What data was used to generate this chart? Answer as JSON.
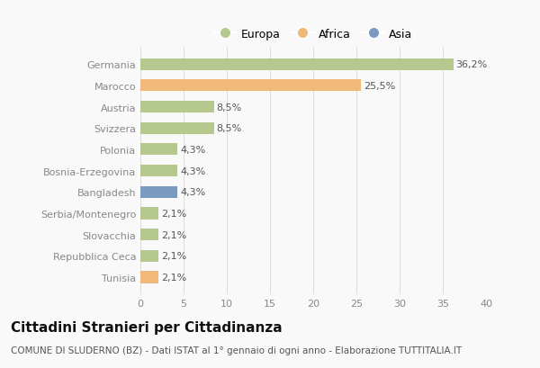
{
  "categories": [
    "Germania",
    "Marocco",
    "Austria",
    "Svizzera",
    "Polonia",
    "Bosnia-Erzegovina",
    "Bangladesh",
    "Serbia/Montenegro",
    "Slovacchia",
    "Repubblica Ceca",
    "Tunisia"
  ],
  "values": [
    36.2,
    25.5,
    8.5,
    8.5,
    4.3,
    4.3,
    4.3,
    2.1,
    2.1,
    2.1,
    2.1
  ],
  "labels": [
    "36,2%",
    "25,5%",
    "8,5%",
    "8,5%",
    "4,3%",
    "4,3%",
    "4,3%",
    "2,1%",
    "2,1%",
    "2,1%",
    "2,1%"
  ],
  "colors": [
    "#b5c98e",
    "#f0b97a",
    "#b5c98e",
    "#b5c98e",
    "#b5c98e",
    "#b5c98e",
    "#7b9abf",
    "#b5c98e",
    "#b5c98e",
    "#b5c98e",
    "#f0b97a"
  ],
  "legend_labels": [
    "Europa",
    "Africa",
    "Asia"
  ],
  "legend_colors": [
    "#b5c98e",
    "#f0b97a",
    "#7b9abf"
  ],
  "title": "Cittadini Stranieri per Cittadinanza",
  "subtitle": "COMUNE DI SLUDERNO (BZ) - Dati ISTAT al 1° gennaio di ogni anno - Elaborazione TUTTITALIA.IT",
  "xlim": [
    0,
    40
  ],
  "xticks": [
    0,
    5,
    10,
    15,
    20,
    25,
    30,
    35,
    40
  ],
  "background_color": "#f9f9f9",
  "bar_height": 0.55,
  "title_fontsize": 11,
  "subtitle_fontsize": 7.5,
  "label_fontsize": 8,
  "tick_fontsize": 8,
  "legend_fontsize": 9
}
